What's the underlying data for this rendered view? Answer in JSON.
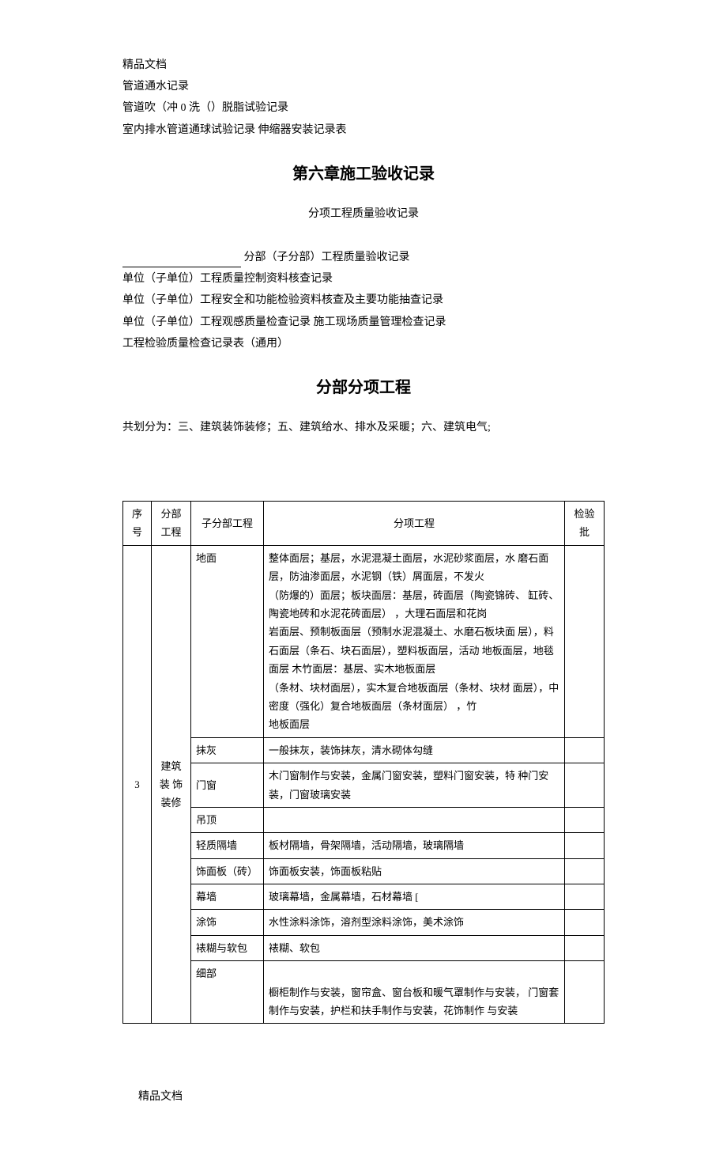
{
  "header": {
    "brand": "精品文档",
    "lines": [
      "管道通水记录",
      "管道吹（冲 0 洗（）脱脂试验记录",
      "室内排水管道通球试验记录 伸缩器安装记录表"
    ]
  },
  "chapter": {
    "title": "第六章施工验收记录",
    "subtitle": "分项工程质量验收记录",
    "record_lines": [
      {
        "prefix_underline": true,
        "text": " 分部（子分部）工程质量验收记录"
      },
      {
        "text": "单位（子单位）工程质量控制资料核查记录"
      },
      {
        "text": "单位（子单位）工程安全和功能检验资料核查及主要功能抽查记录"
      },
      {
        "text": "单位（子单位）工程观感质量检查记录 施工现场质量管理检查记录"
      },
      {
        "text": "工程检验质量检查记录表（通用）"
      }
    ]
  },
  "section": {
    "title": "分部分项工程",
    "intro": "共划分为：三、建筑装饰装修；五、建筑给水、排水及采暖；六、建筑电气;"
  },
  "table": {
    "headers": {
      "seq": "序 号",
      "division": "分部 工程",
      "subdivision": "子分部工程",
      "item": "分项工程",
      "batch": "检验批"
    },
    "seq_value": "3",
    "division_value": "建筑 装 饰 装修",
    "rows": [
      {
        "subdiv": "地面",
        "item": "整体面层；基层，水泥混凝土面层，水泥砂浆面层，水 磨石面层，防油渗面层，水泥钢（铁）屑面层，不发火\n（防爆的）面层；板块面层：基层，砖面层（陶瓷锦砖、 缸砖、陶瓷地砖和水泥花砖面层）                  ，大理石面层和花岗\n岩面层、预制板面层（预制水泥混凝土、水磨石板块面 层），料石面层（条石、块石面层），塑料板面层，活动 地板面层，地毯面层 木竹面层：基层、实木地板面层\n（条材、块材面层），实木复合地板面层（条材、块材 面层），中密度（强化）复合地板面层（条材面层）                               ，竹\n地板面层"
      },
      {
        "subdiv": "抹灰",
        "item": "一般抹灰，装饰抹灰，清水砌体勾缝"
      },
      {
        "subdiv": "门窗",
        "item": "木门窗制作与安装，金属门窗安装，塑料门窗安装，特 种门安装，门窗玻璃安装"
      },
      {
        "subdiv": "吊顶",
        "item": ""
      },
      {
        "subdiv": "轻质隔墙",
        "item": "板材隔墙，骨架隔墙，活动隔墙，玻璃隔墙"
      },
      {
        "subdiv": "饰面板（砖）",
        "item": "饰面板安装，饰面板粘贴"
      },
      {
        "subdiv": "幕墙",
        "item": "玻璃幕墙，金属幕墙，石材幕墙                                 ["
      },
      {
        "subdiv": "涂饰",
        "item": "水性涂料涂饰，溶剂型涂料涂饰，美术涂饰"
      },
      {
        "subdiv": "裱糊与软包",
        "item": "裱糊、软包"
      },
      {
        "subdiv": "细部",
        "item": "\n橱柜制作与安装，窗帘盒、窗台板和暖气罩制作与安装，  门窗套制作与安装，护栏和扶手制作与安装，花饰制作 与安装"
      }
    ]
  },
  "footer": {
    "text": "精品文档"
  }
}
